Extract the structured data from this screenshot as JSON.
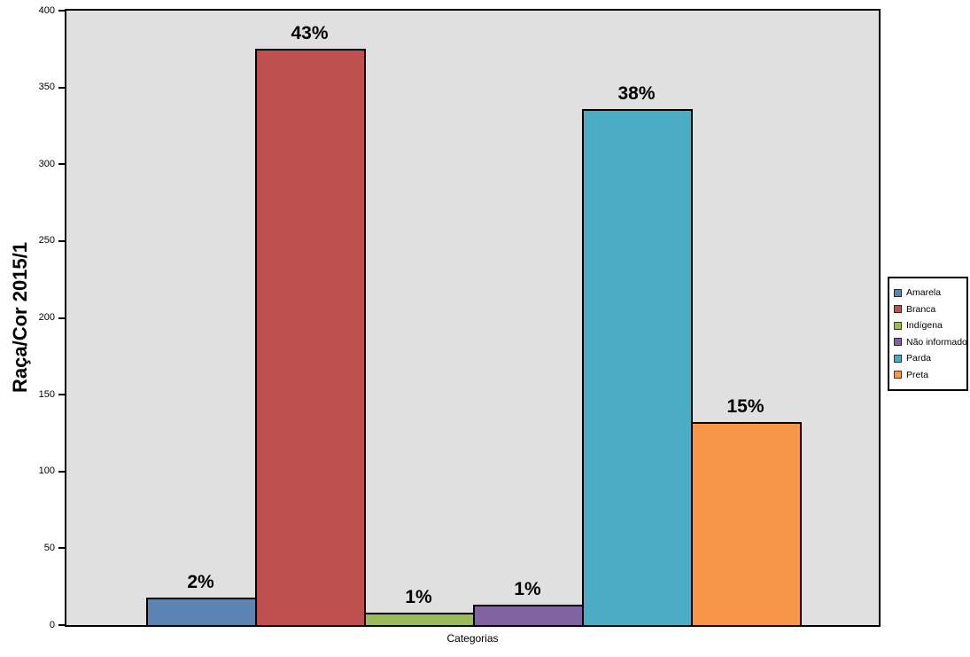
{
  "chart_data": {
    "type": "bar",
    "title": "",
    "ylabel": "Raça/Cor 2015/1",
    "xlabel": "Categorias",
    "ylim": [
      0,
      400
    ],
    "yticks": [
      0,
      50,
      100,
      150,
      200,
      250,
      300,
      350,
      400
    ],
    "grid": false,
    "plot_background": "#e0e0e0",
    "bar_border_color": "#000000",
    "legend_position": "right",
    "series": [
      {
        "name": "Amarela",
        "color": "#5B84B5",
        "value": 18,
        "label": "2%"
      },
      {
        "name": "Branca",
        "color": "#C0504D",
        "value": 375,
        "label": "43%"
      },
      {
        "name": "Indígena",
        "color": "#9BBB59",
        "value": 8,
        "label": "1%"
      },
      {
        "name": "Não informado",
        "color": "#8064A2",
        "value": 13,
        "label": "1%"
      },
      {
        "name": "Parda",
        "color": "#4BACC6",
        "value": 336,
        "label": "38%"
      },
      {
        "name": "Preta",
        "color": "#F79646",
        "value": 132,
        "label": "15%"
      }
    ]
  }
}
